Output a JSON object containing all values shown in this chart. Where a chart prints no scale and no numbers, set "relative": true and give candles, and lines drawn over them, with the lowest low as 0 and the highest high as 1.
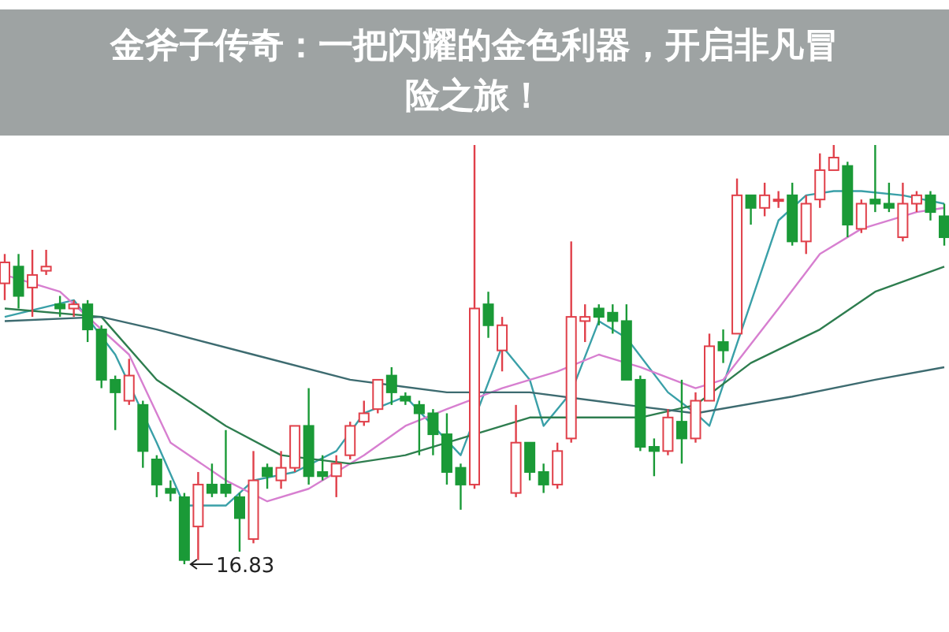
{
  "chart_data": {
    "type": "candlestick",
    "title": "金斧子传奇：一把闪耀的金色利器，开启非凡冒险之旅！",
    "relative": true,
    "categories": [
      null,
      null,
      null,
      null,
      null,
      null,
      null,
      null,
      null,
      null,
      null,
      null,
      null,
      null,
      null,
      null,
      null,
      null,
      null,
      null,
      null,
      null,
      null,
      null,
      null,
      null,
      null,
      null,
      null,
      null,
      null,
      null,
      null,
      null,
      null,
      null,
      null,
      null,
      null,
      null,
      null,
      null,
      null,
      null,
      null,
      null,
      null,
      null,
      null,
      null,
      null,
      null,
      null,
      null,
      null,
      null,
      null,
      null,
      null,
      null,
      null,
      null,
      null,
      null,
      null,
      null,
      null,
      null,
      null
    ],
    "colors": [
      "#e0404a",
      "#1a9a37",
      "#e0404a",
      "#e0404a",
      "#1a9a37",
      "#e0404a",
      "#1a9a37",
      "#1a9a37",
      "#1a9a37",
      "#e0404a",
      "#1a9a37",
      "#1a9a37",
      "#1a9a37",
      "#1a9a37",
      "#e0404a",
      "#1a9a37",
      "#1a9a37",
      "#1a9a37",
      "#e0404a",
      "#1a9a37",
      "#e0404a",
      "#e0404a",
      "#1a9a37",
      "#1a9a37",
      "#e0404a",
      "#e0404a",
      "#e0404a",
      "#e0404a",
      "#1a9a37",
      "#1a9a37",
      "#1a9a37",
      "#1a9a37",
      "#1a9a37",
      "#1a9a37",
      "#e0404a",
      "#1a9a37",
      "#e0404a",
      "#e0404a",
      "#1a9a37",
      "#1a9a37",
      "#e0404a",
      "#e0404a",
      "#e0404a",
      "#1a9a37",
      "#1a9a37",
      "#1a9a37",
      "#1a9a37",
      "#1a9a37",
      "#e0404a",
      "#1a9a37",
      "#e0404a",
      "#e0404a",
      "#1a9a37",
      "#e0404a",
      "#1a9a37",
      "#e0404a",
      "#e0404a",
      "#1a9a37",
      "#e0404a",
      "#e0404a",
      "#e0404a",
      "#1a9a37",
      "#e0404a",
      "#1a9a37",
      "#1a9a37",
      "#e0404a",
      "#e0404a",
      "#1a9a37",
      "#1a9a37"
    ],
    "ohlc": [
      [
        0.67,
        0.74,
        0.63,
        0.72
      ],
      [
        0.71,
        0.74,
        0.61,
        0.64
      ],
      [
        0.66,
        0.75,
        0.59,
        0.69
      ],
      [
        0.7,
        0.75,
        0.69,
        0.71
      ],
      [
        0.62,
        0.64,
        0.59,
        0.61
      ],
      [
        0.61,
        0.63,
        0.59,
        0.62
      ],
      [
        0.62,
        0.63,
        0.53,
        0.56
      ],
      [
        0.56,
        0.57,
        0.42,
        0.44
      ],
      [
        0.44,
        0.45,
        0.32,
        0.41
      ],
      [
        0.39,
        0.49,
        0.38,
        0.45
      ],
      [
        0.38,
        0.39,
        0.23,
        0.27
      ],
      [
        0.25,
        0.26,
        0.16,
        0.19
      ],
      [
        0.18,
        0.2,
        0.15,
        0.17
      ],
      [
        0.16,
        0.17,
        0,
        0.01
      ],
      [
        0.09,
        0.22,
        0.01,
        0.19
      ],
      [
        0.19,
        0.24,
        0.16,
        0.17
      ],
      [
        0.19,
        0.32,
        0.16,
        0.17
      ],
      [
        0.16,
        0.17,
        0.03,
        0.11
      ],
      [
        0.06,
        0.27,
        0.05,
        0.2
      ],
      [
        0.23,
        0.24,
        0.18,
        0.21
      ],
      [
        0.2,
        0.27,
        0.18,
        0.23
      ],
      [
        0.23,
        0.33,
        0.22,
        0.33
      ],
      [
        0.33,
        0.42,
        0.19,
        0.21
      ],
      [
        0.22,
        0.26,
        0.2,
        0.21
      ],
      [
        0.21,
        0.26,
        0.16,
        0.24
      ],
      [
        0.26,
        0.34,
        0.25,
        0.33
      ],
      [
        0.34,
        0.39,
        0.33,
        0.36
      ],
      [
        0.37,
        0.44,
        0.36,
        0.44
      ],
      [
        0.45,
        0.47,
        0.38,
        0.41
      ],
      [
        0.4,
        0.41,
        0.38,
        0.39
      ],
      [
        0.38,
        0.39,
        0.26,
        0.36
      ],
      [
        0.36,
        0.37,
        0.26,
        0.31
      ],
      [
        0.31,
        0.36,
        0.19,
        0.22
      ],
      [
        0.23,
        0.24,
        0.13,
        0.19
      ],
      [
        0.19,
        1,
        0.18,
        0.61
      ],
      [
        0.62,
        0.65,
        0.54,
        0.57
      ],
      [
        0.51,
        0.59,
        0.46,
        0.57
      ],
      [
        0.17,
        0.38,
        0.16,
        0.29
      ],
      [
        0.29,
        0.29,
        0.2,
        0.22
      ],
      [
        0.22,
        0.24,
        0.17,
        0.19
      ],
      [
        0.19,
        0.29,
        0.18,
        0.27
      ],
      [
        0.3,
        0.77,
        0.29,
        0.59
      ],
      [
        0.58,
        0.62,
        0.53,
        0.59
      ],
      [
        0.61,
        0.62,
        0.57,
        0.59
      ],
      [
        0.6,
        0.62,
        0.55,
        0.58
      ],
      [
        0.58,
        0.62,
        0.44,
        0.44
      ],
      [
        0.44,
        0.45,
        0.27,
        0.28
      ],
      [
        0.28,
        0.3,
        0.21,
        0.27
      ],
      [
        0.27,
        0.37,
        0.26,
        0.35
      ],
      [
        0.34,
        0.44,
        0.24,
        0.3
      ],
      [
        0.3,
        0.41,
        0.29,
        0.39
      ],
      [
        0.39,
        0.55,
        0.39,
        0.52
      ],
      [
        0.53,
        0.56,
        0.48,
        0.51
      ],
      [
        0.55,
        0.92,
        0.55,
        0.88
      ],
      [
        0.88,
        0.88,
        0.81,
        0.85
      ],
      [
        0.85,
        0.91,
        0.83,
        0.88
      ],
      [
        0.87,
        0.89,
        0.85,
        0.87
      ],
      [
        0.88,
        0.91,
        0.76,
        0.77
      ],
      [
        0.77,
        0.88,
        0.74,
        0.86
      ],
      [
        0.87,
        0.98,
        0.85,
        0.94
      ],
      [
        0.94,
        1,
        0.94,
        0.97
      ],
      [
        0.95,
        0.96,
        0.78,
        0.81
      ],
      [
        0.8,
        0.87,
        0.79,
        0.86
      ],
      [
        0.87,
        1,
        0.84,
        0.86
      ],
      [
        0.86,
        0.91,
        0.84,
        0.85
      ],
      [
        0.78,
        0.91,
        0.77,
        0.86
      ],
      [
        0.86,
        0.89,
        0.84,
        0.88
      ],
      [
        0.88,
        0.89,
        0.82,
        0.84
      ],
      [
        0.83,
        0.86,
        0.76,
        0.78
      ]
    ],
    "series": [
      {
        "type": "line",
        "color": "#3aa0a8",
        "values": [
          0.59,
          null,
          null,
          null,
          null,
          0.63,
          null,
          null,
          0.5,
          null,
          null,
          0.29,
          null,
          0.14,
          null,
          null,
          0.14,
          null,
          0.2,
          null,
          null,
          0.22,
          null,
          null,
          0.27,
          null,
          0.36,
          null,
          null,
          0.4,
          null,
          0.33,
          null,
          0.26,
          null,
          null,
          0.52,
          null,
          0.44,
          0.33,
          null,
          0.41,
          null,
          0.58,
          null,
          0.54,
          null,
          null,
          0.41,
          null,
          0.36,
          0.33,
          null,
          null,
          null,
          null,
          0.82,
          null,
          0.88,
          null,
          0.89,
          null,
          0.89,
          null,
          null,
          0.88,
          null,
          null,
          0.86
        ]
      },
      {
        "type": "line",
        "color": "#d77fd0",
        "values": [
          0.69,
          null,
          null,
          null,
          0.65,
          null,
          null,
          null,
          null,
          0.5,
          null,
          null,
          0.29,
          null,
          null,
          null,
          0.2,
          null,
          null,
          0.15,
          null,
          null,
          0.18,
          null,
          null,
          null,
          0.26,
          null,
          null,
          0.33,
          null,
          null,
          0.37,
          null,
          null,
          null,
          0.42,
          null,
          null,
          null,
          0.46,
          null,
          null,
          0.5,
          null,
          null,
          0.47,
          null,
          null,
          null,
          0.42,
          null,
          0.44,
          null,
          null,
          null,
          0.61,
          null,
          null,
          0.74,
          null,
          null,
          0.8,
          null,
          null,
          null,
          0.84,
          null,
          0.85
        ]
      },
      {
        "type": "line",
        "color": "#2e7d4f",
        "values": [
          0.61,
          null,
          null,
          null,
          null,
          null,
          null,
          0.59,
          null,
          null,
          null,
          0.44,
          null,
          null,
          null,
          null,
          0.33,
          null,
          null,
          null,
          0.26,
          null,
          null,
          null,
          null,
          0.24,
          null,
          null,
          null,
          0.26,
          null,
          null,
          null,
          null,
          0.31,
          null,
          null,
          null,
          0.35,
          null,
          null,
          null,
          null,
          0.35,
          null,
          null,
          0.35,
          null,
          null,
          null,
          0.38,
          null,
          null,
          null,
          0.48,
          null,
          null,
          null,
          null,
          0.56,
          null,
          null,
          null,
          0.65,
          null,
          null,
          null,
          null,
          0.71
        ]
      },
      {
        "type": "line",
        "color": "#3d6b70",
        "values": [
          0.58,
          null,
          null,
          null,
          null,
          null,
          null,
          0.59,
          null,
          null,
          null,
          0.56,
          null,
          null,
          null,
          null,
          null,
          null,
          0.5,
          null,
          null,
          null,
          null,
          null,
          null,
          0.44,
          null,
          null,
          null,
          null,
          null,
          null,
          0.41,
          null,
          null,
          null,
          null,
          null,
          0.41,
          null,
          null,
          null,
          null,
          null,
          null,
          0.38,
          null,
          null,
          null,
          null,
          0.36,
          null,
          null,
          null,
          null,
          null,
          null,
          0.4,
          null,
          null,
          null,
          null,
          null,
          0.44,
          null,
          null,
          null,
          null,
          0.47
        ]
      }
    ],
    "annotations": [
      "16.83"
    ]
  }
}
